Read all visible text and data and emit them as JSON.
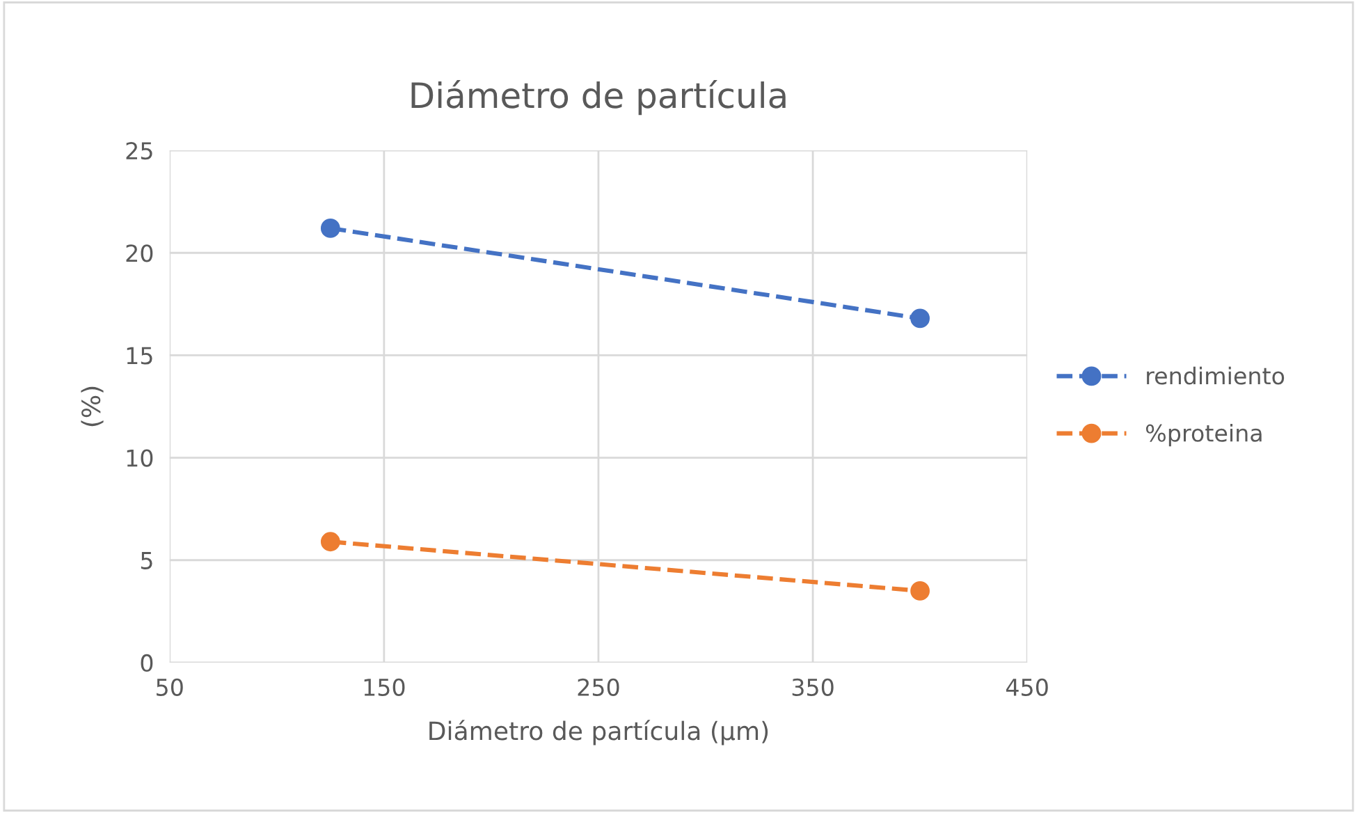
{
  "chart_data": {
    "type": "line",
    "title": "Diámetro de partícula",
    "xlabel": "Diámetro de partícula (µm)",
    "ylabel": "(%)",
    "series": [
      {
        "name": "rendimiento",
        "color": "#4472c4",
        "values": [
          21.2,
          16.8
        ]
      },
      {
        "name": "%proteina",
        "color": "#ed7d31",
        "values": [
          5.9,
          3.5
        ]
      }
    ],
    "x": [
      125,
      400
    ],
    "xlim": [
      50,
      450
    ],
    "xticks": [
      50,
      150,
      250,
      350,
      450
    ],
    "ylim": [
      0,
      25
    ],
    "yticks": [
      0,
      5,
      10,
      15,
      20,
      25
    ],
    "grid": true,
    "legend": "right",
    "marker": "circle",
    "line_style": "dashed"
  }
}
